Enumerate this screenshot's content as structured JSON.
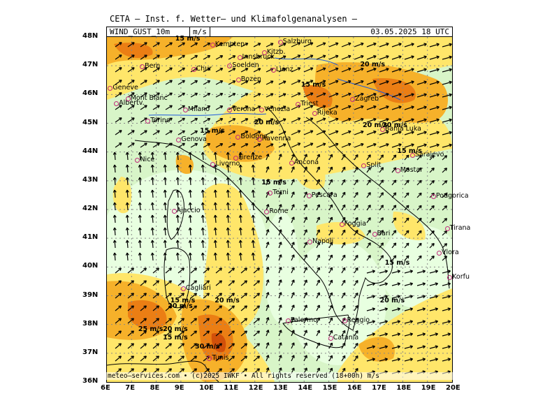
{
  "header": {
    "title": "CETA — Inst. f. Wetter— und Klimafolgenanalysen —",
    "parameter": "WIND_GUST_10m",
    "unit": "m/s",
    "datetime": "03.05.2025 18 UTC"
  },
  "footer": "meteo—services.com • (c)2025 IWKF • All rights reserved (18+00h) m/s",
  "axes": {
    "lat_labels": [
      "48N",
      "47N",
      "46N",
      "45N",
      "44N",
      "43N",
      "42N",
      "41N",
      "40N",
      "39N",
      "38N",
      "37N",
      "36N"
    ],
    "lon_labels": [
      "6E",
      "7E",
      "8E",
      "9E",
      "10E",
      "11E",
      "12E",
      "13E",
      "14E",
      "15E",
      "16E",
      "17E",
      "18E",
      "19E",
      "20E"
    ]
  },
  "cities": [
    {
      "name": "Kempten",
      "lon": 10.3,
      "lat": 47.72
    },
    {
      "name": "Salzburg",
      "lon": 13.05,
      "lat": 47.8
    },
    {
      "name": "Kitzb.",
      "lon": 12.4,
      "lat": 47.45
    },
    {
      "name": "Innsbruck",
      "lon": 11.4,
      "lat": 47.27
    },
    {
      "name": "Soelden",
      "lon": 11.0,
      "lat": 46.97
    },
    {
      "name": "Lienz",
      "lon": 12.77,
      "lat": 46.83
    },
    {
      "name": "Bern",
      "lon": 7.45,
      "lat": 46.95
    },
    {
      "name": "Chur",
      "lon": 9.53,
      "lat": 46.85
    },
    {
      "name": "Bozen",
      "lon": 11.35,
      "lat": 46.5
    },
    {
      "name": "Geneve",
      "lon": 6.15,
      "lat": 46.2
    },
    {
      "name": "Albertv.",
      "lon": 6.4,
      "lat": 45.68
    },
    {
      "name": "Mont Blanc",
      "lon": 6.87,
      "lat": 45.83
    },
    {
      "name": "Milano",
      "lon": 9.2,
      "lat": 45.46
    },
    {
      "name": "Verona",
      "lon": 11.0,
      "lat": 45.44
    },
    {
      "name": "Venezia",
      "lon": 12.3,
      "lat": 45.44
    },
    {
      "name": "Triest",
      "lon": 13.77,
      "lat": 45.65
    },
    {
      "name": "Rijeka",
      "lon": 14.44,
      "lat": 45.33
    },
    {
      "name": "Zagreb",
      "lon": 15.98,
      "lat": 45.81
    },
    {
      "name": "Torino",
      "lon": 7.68,
      "lat": 45.07
    },
    {
      "name": "Genova",
      "lon": 8.93,
      "lat": 44.41
    },
    {
      "name": "Bologna",
      "lon": 11.34,
      "lat": 44.5
    },
    {
      "name": "Ravenna",
      "lon": 12.2,
      "lat": 44.42
    },
    {
      "name": "Banja Luka",
      "lon": 17.19,
      "lat": 44.77
    },
    {
      "name": "Nice",
      "lon": 7.26,
      "lat": 43.7
    },
    {
      "name": "Firenze",
      "lon": 11.25,
      "lat": 43.77
    },
    {
      "name": "Livorno",
      "lon": 10.32,
      "lat": 43.55
    },
    {
      "name": "Ancona",
      "lon": 13.5,
      "lat": 43.6
    },
    {
      "name": "Split",
      "lon": 16.44,
      "lat": 43.51
    },
    {
      "name": "Sarajevo",
      "lon": 18.41,
      "lat": 43.86
    },
    {
      "name": "Mostar",
      "lon": 17.81,
      "lat": 43.34
    },
    {
      "name": "Podgorica",
      "lon": 19.26,
      "lat": 42.44
    },
    {
      "name": "Terni",
      "lon": 12.64,
      "lat": 42.56
    },
    {
      "name": "Pescara",
      "lon": 14.21,
      "lat": 42.46
    },
    {
      "name": "Ajaccio",
      "lon": 8.74,
      "lat": 41.92
    },
    {
      "name": "Rome",
      "lon": 12.5,
      "lat": 41.9
    },
    {
      "name": "Tirana",
      "lon": 19.82,
      "lat": 41.33
    },
    {
      "name": "Foggia",
      "lon": 15.54,
      "lat": 41.46
    },
    {
      "name": "Napoli",
      "lon": 14.25,
      "lat": 40.85
    },
    {
      "name": "Bari",
      "lon": 16.87,
      "lat": 41.12
    },
    {
      "name": "Vlora",
      "lon": 19.49,
      "lat": 40.47
    },
    {
      "name": "Korfu",
      "lon": 19.92,
      "lat": 39.62
    },
    {
      "name": "Cagliari",
      "lon": 9.11,
      "lat": 39.22
    },
    {
      "name": "Reggio",
      "lon": 15.65,
      "lat": 38.11
    },
    {
      "name": "Palermo",
      "lon": 13.36,
      "lat": 38.12
    },
    {
      "name": "Catania",
      "lon": 15.09,
      "lat": 37.5
    },
    {
      "name": "Tunis",
      "lon": 10.18,
      "lat": 36.8
    }
  ],
  "annotations": [
    {
      "text": "15 m/s",
      "lon": 8.8,
      "lat": 47.9
    },
    {
      "text": "15 m/s",
      "lon": 13.9,
      "lat": 46.3
    },
    {
      "text": "20 m/s",
      "lon": 16.3,
      "lat": 47.0
    },
    {
      "text": "20 m/s",
      "lon": 12.0,
      "lat": 45.0
    },
    {
      "text": "15 m/s",
      "lon": 9.8,
      "lat": 44.7
    },
    {
      "text": "20 m/s",
      "lon": 16.4,
      "lat": 44.9
    },
    {
      "text": "20 m/s",
      "lon": 17.2,
      "lat": 44.9
    },
    {
      "text": "15 m/s",
      "lon": 17.8,
      "lat": 44.0
    },
    {
      "text": "15 m/s",
      "lon": 12.3,
      "lat": 42.9
    },
    {
      "text": "15 m/s",
      "lon": 17.3,
      "lat": 40.1
    },
    {
      "text": "15 m/s",
      "lon": 8.6,
      "lat": 38.8
    },
    {
      "text": "20 m/s",
      "lon": 8.5,
      "lat": 38.6
    },
    {
      "text": "20 m/s",
      "lon": 10.4,
      "lat": 38.8
    },
    {
      "text": "20 m/s",
      "lon": 17.1,
      "lat": 38.8
    },
    {
      "text": "25 m/s",
      "lon": 7.3,
      "lat": 37.8
    },
    {
      "text": "20 m/s",
      "lon": 8.3,
      "lat": 37.8
    },
    {
      "text": "15 m/s",
      "lon": 8.3,
      "lat": 37.5
    },
    {
      "text": "30 m/s",
      "lon": 9.6,
      "lat": 37.2
    }
  ],
  "colors": {
    "land_low": "#d8f5c8",
    "gust_5_10": "#e8ffe0",
    "gust_10_15": "#bff0a8",
    "gust_15_20": "#ffe66a",
    "gust_20_25": "#f6b12a",
    "gust_25_30": "#eb7e14",
    "gust_30": "#d2500a",
    "coast": "#000000",
    "rivers": "#1e5adc",
    "city_marker": "#c0287a"
  },
  "icons": {
    "wind_arrow": "arrow-icon",
    "city": "city-marker-icon"
  }
}
